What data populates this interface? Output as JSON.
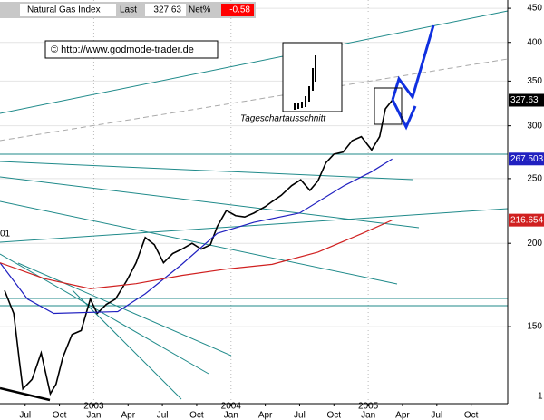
{
  "header": {
    "instrument": "Natural Gas Index",
    "last_label": "Last",
    "last": "327.63",
    "net_label": "Net%",
    "net": "-0.58"
  },
  "copyright": "© http://www.godmode-trader.de",
  "inset_caption": "Tageschartausschnitt",
  "edge_labels": [
    "01",
    "1"
  ],
  "chart_data": {
    "type": "line",
    "log_scale": true,
    "grid": true,
    "xlim": [
      -2.2,
      42.2
    ],
    "ylim": [
      115,
      463
    ],
    "yticks": [
      150,
      200,
      250,
      300,
      350,
      400,
      450
    ],
    "xticks": [
      {
        "value": 0,
        "label": "Jul"
      },
      {
        "value": 3,
        "label": "Oct"
      },
      {
        "value": 6,
        "label": "Jan"
      },
      {
        "value": 9,
        "label": "Apr"
      },
      {
        "value": 12,
        "label": "Jul"
      },
      {
        "value": 15,
        "label": "Oct"
      },
      {
        "value": 18,
        "label": "Jan"
      },
      {
        "value": 21,
        "label": "Apr"
      },
      {
        "value": 24,
        "label": "Jul"
      },
      {
        "value": 27,
        "label": "Oct"
      },
      {
        "value": 30,
        "label": "Jan"
      },
      {
        "value": 33,
        "label": "Apr"
      },
      {
        "value": 36,
        "label": "Jul"
      },
      {
        "value": 39,
        "label": "Oct"
      }
    ],
    "years": [
      {
        "value": 6,
        "label": "2003"
      },
      {
        "value": 18,
        "label": "2004"
      },
      {
        "value": 30,
        "label": "2005"
      }
    ],
    "series": [
      {
        "name": "Natural Gas Index",
        "color": "#000000",
        "x": [
          -1.8,
          -1.0,
          -0.5,
          -0.2,
          0.6,
          1.4,
          2.2,
          2.7,
          3.3,
          4.1,
          4.9,
          5.7,
          6.3,
          7.1,
          7.9,
          8.9,
          9.7,
          10.5,
          11.3,
          12.1,
          12.9,
          13.7,
          14.6,
          15.4,
          16.2,
          16.8,
          17.6,
          18.4,
          19.2,
          20.0,
          21.0,
          21.6,
          22.4,
          23.3,
          24.1,
          24.9,
          25.6,
          26.3,
          27.0,
          27.8,
          28.6,
          29.4,
          30.3,
          31.0,
          31.5,
          32.1
        ],
        "values": [
          170,
          157,
          133,
          121,
          125,
          137,
          119,
          123,
          135,
          146,
          148,
          165,
          157,
          162,
          165,
          176,
          187,
          204,
          199,
          187,
          193,
          196,
          200,
          196,
          199,
          212,
          224,
          220,
          219,
          222,
          227,
          231,
          236,
          244,
          249,
          240,
          248,
          264,
          272,
          274,
          285,
          289,
          276,
          289,
          318,
          327.63
        ]
      },
      {
        "name": "MA blue",
        "color": "#2020c0",
        "x": [
          -2.2,
          0.2,
          2.5,
          8.1,
          10.5,
          13.7,
          16.8,
          20.0,
          24.0,
          27.9,
          30.3,
          32.1
        ],
        "values": [
          187,
          165,
          157,
          158,
          168,
          186,
          207,
          215,
          222,
          244,
          256,
          267.503
        ]
      },
      {
        "name": "MA red",
        "color": "#d02020",
        "x": [
          -2.2,
          1.7,
          5.7,
          9.7,
          13.7,
          17.6,
          21.6,
          25.6,
          29.5,
          32.1
        ],
        "values": [
          187,
          177,
          171,
          174,
          179,
          183,
          186,
          194,
          207,
          216.654
        ]
      }
    ]
  }
}
